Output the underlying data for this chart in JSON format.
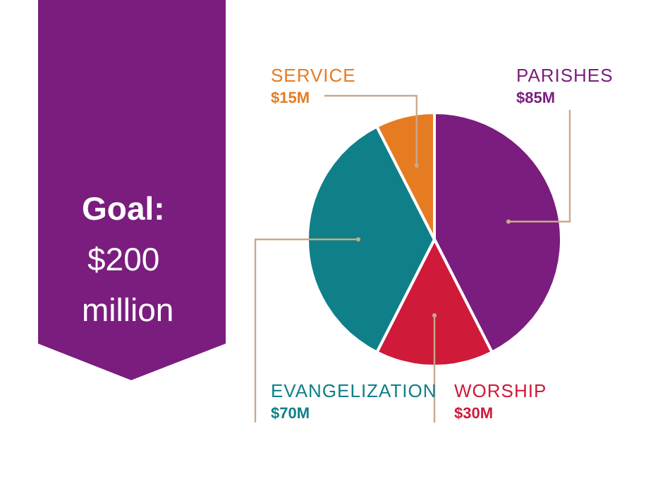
{
  "chart_data": {
    "type": "pie",
    "title": "Goal:",
    "subtitle": "$200 million",
    "categories": [
      "PARISHES",
      "WORSHIP",
      "EVANGELIZATION",
      "SERVICE"
    ],
    "values": [
      85,
      30,
      70,
      15
    ],
    "value_labels": [
      "$85M",
      "$30M",
      "$70M",
      "$15M"
    ],
    "colors": [
      "#7a1d7e",
      "#cf1a3a",
      "#0f8089",
      "#e67c22"
    ]
  }
}
